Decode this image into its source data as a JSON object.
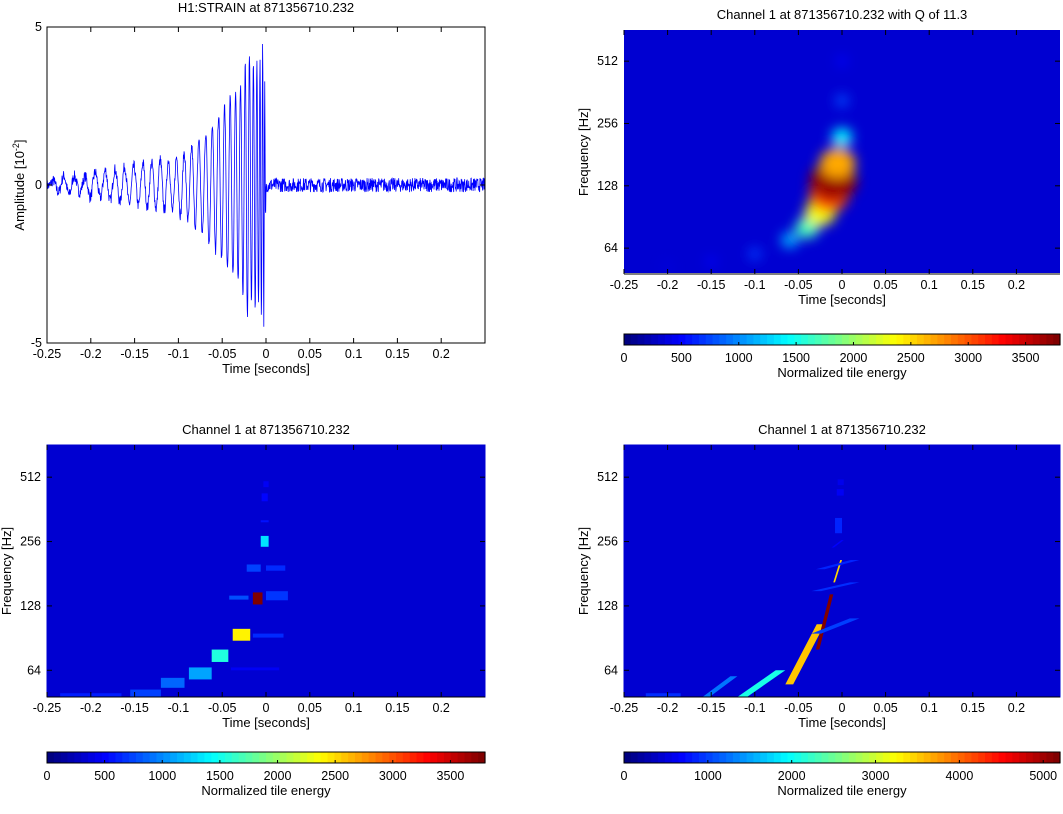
{
  "chart_data": [
    {
      "type": "line",
      "title": "H1:STRAIN at 871356710.232",
      "xlabel": "Time [seconds]",
      "ylabel": "Amplitude [10",
      "ylabel_exponent": "-2",
      "ylabel_close": "]",
      "xlim": [
        -0.25,
        0.25
      ],
      "ylim": [
        -5,
        5
      ],
      "xticks": [
        "-0.25",
        "-0.2",
        "-0.15",
        "-0.1",
        "-0.05",
        "0",
        "0.05",
        "0.1",
        "0.15",
        "0.2"
      ],
      "yticks": [
        "5",
        "0",
        "-5"
      ],
      "series": [
        {
          "color": "#0000ff",
          "x": [
            -0.25,
            -0.24,
            -0.23,
            -0.22,
            -0.21,
            -0.2,
            -0.19,
            -0.18,
            -0.17,
            -0.16,
            -0.15,
            -0.14,
            -0.13,
            -0.12,
            -0.11,
            -0.1,
            -0.095,
            -0.09,
            -0.085,
            -0.08,
            -0.075,
            -0.07,
            -0.065,
            -0.06,
            -0.055,
            -0.05,
            -0.045,
            -0.04,
            -0.035,
            -0.03,
            -0.025,
            -0.02,
            -0.016,
            -0.012,
            -0.008,
            -0.004,
            -0.002,
            0.0,
            0.004,
            0.01,
            0.02,
            0.04,
            0.06,
            0.08,
            0.1,
            0.12,
            0.14,
            0.16,
            0.18,
            0.2,
            0.22,
            0.25
          ],
          "y": [
            0,
            0.2,
            -0.3,
            0.3,
            -0.2,
            0.4,
            -0.4,
            0.5,
            -0.5,
            0.6,
            -0.6,
            0.7,
            -0.7,
            0.8,
            -0.8,
            0.9,
            -1.0,
            1.1,
            -1.2,
            1.3,
            -1.5,
            1.6,
            -1.8,
            2.0,
            -2.2,
            2.4,
            -2.6,
            2.8,
            -3.0,
            3.2,
            -3.5,
            4.5,
            -3.6,
            4.0,
            -3.8,
            4.5,
            -4.3,
            0.3,
            -0.2,
            0.2,
            -0.1,
            0.15,
            -0.15,
            0.1,
            -0.1,
            0.15,
            -0.1,
            0.1,
            -0.15,
            0.1,
            -0.1,
            0
          ]
        }
      ]
    },
    {
      "type": "heatmap",
      "title": "Channel 1 at 871356710.232 with Q of 11.3",
      "xlabel": "Time [seconds]",
      "ylabel": "Frequency [Hz]",
      "xlim": [
        -0.25,
        0.25
      ],
      "xticks": [
        "-0.25",
        "-0.2",
        "-0.15",
        "-0.1",
        "-0.05",
        "0",
        "0.05",
        "0.1",
        "0.15",
        "0.2"
      ],
      "yticks": [
        "512",
        "256",
        "128",
        "64"
      ],
      "ylim_hz": [
        48,
        724
      ],
      "colorbar": {
        "label": "Normalized tile energy",
        "max": 3800,
        "ticks": [
          "0",
          "500",
          "1000",
          "1500",
          "2000",
          "2500",
          "3000",
          "3500"
        ]
      },
      "chirp": {
        "points": [
          {
            "t": -0.2,
            "f": 52,
            "e": 80
          },
          {
            "t": -0.15,
            "f": 55,
            "e": 200
          },
          {
            "t": -0.1,
            "f": 60,
            "e": 450
          },
          {
            "t": -0.06,
            "f": 70,
            "e": 900
          },
          {
            "t": -0.04,
            "f": 80,
            "e": 1500
          },
          {
            "t": -0.025,
            "f": 95,
            "e": 2200
          },
          {
            "t": -0.015,
            "f": 115,
            "e": 3000
          },
          {
            "t": -0.01,
            "f": 135,
            "e": 3700
          },
          {
            "t": -0.005,
            "f": 165,
            "e": 2600
          },
          {
            "t": 0.0,
            "f": 220,
            "e": 1200
          },
          {
            "t": 0.0,
            "f": 330,
            "e": 500
          },
          {
            "t": 0.0,
            "f": 512,
            "e": 250
          }
        ]
      }
    },
    {
      "type": "heatmap",
      "title": "Channel 1 at 871356710.232",
      "xlabel": "Time [seconds]",
      "ylabel": "Frequency [Hz]",
      "xlim": [
        -0.25,
        0.25
      ],
      "xticks": [
        "-0.25",
        "-0.2",
        "-0.15",
        "-0.1",
        "-0.05",
        "0",
        "0.05",
        "0.1",
        "0.15",
        "0.2"
      ],
      "yticks": [
        "512",
        "256",
        "128",
        "64"
      ],
      "ylim_hz": [
        48,
        724
      ],
      "colorbar": {
        "label": "Normalized tile energy",
        "max": 3800,
        "ticks": [
          "0",
          "500",
          "1000",
          "1500",
          "2000",
          "2500",
          "3000",
          "3500"
        ]
      },
      "tiles": [
        {
          "t0": -0.235,
          "t1": -0.165,
          "f0": 48,
          "f1": 50,
          "e": 300
        },
        {
          "t0": -0.155,
          "t1": -0.12,
          "f0": 48,
          "f1": 52,
          "e": 450
        },
        {
          "t0": -0.12,
          "t1": -0.093,
          "f0": 53,
          "f1": 59,
          "e": 600
        },
        {
          "t0": -0.088,
          "t1": -0.062,
          "f0": 58,
          "f1": 66,
          "e": 850
        },
        {
          "t0": -0.062,
          "t1": -0.043,
          "f0": 70,
          "f1": 80,
          "e": 1350
        },
        {
          "t0": -0.038,
          "t1": -0.018,
          "f0": 88,
          "f1": 100,
          "e": 2300
        },
        {
          "t0": -0.015,
          "t1": 0.02,
          "f0": 91,
          "f1": 95,
          "e": 350
        },
        {
          "t0": -0.04,
          "t1": 0.015,
          "f0": 64,
          "f1": 66,
          "e": 150
        },
        {
          "t0": -0.042,
          "t1": -0.02,
          "f0": 137,
          "f1": 143,
          "e": 500
        },
        {
          "t0": -0.015,
          "t1": -0.004,
          "f0": 130,
          "f1": 148,
          "e": 3800
        },
        {
          "t0": 0.0,
          "t1": 0.025,
          "f0": 136,
          "f1": 150,
          "e": 400
        },
        {
          "t0": -0.022,
          "t1": -0.006,
          "f0": 185,
          "f1": 200,
          "e": 450
        },
        {
          "t0": 0.0,
          "t1": 0.022,
          "f0": 187,
          "f1": 198,
          "e": 350
        },
        {
          "t0": -0.006,
          "t1": 0.003,
          "f0": 242,
          "f1": 272,
          "e": 1100
        },
        {
          "t0": -0.006,
          "t1": 0.003,
          "f0": 315,
          "f1": 322,
          "e": 250
        },
        {
          "t0": -0.005,
          "t1": 0.002,
          "f0": 395,
          "f1": 430,
          "e": 200
        },
        {
          "t0": -0.003,
          "t1": 0.003,
          "f0": 460,
          "f1": 490,
          "e": 150
        }
      ]
    },
    {
      "type": "heatmap",
      "title": "Channel 1 at 871356710.232",
      "xlabel": "Time [seconds]",
      "ylabel": "Frequency [Hz]",
      "xlim": [
        -0.25,
        0.25
      ],
      "xticks": [
        "-0.25",
        "-0.2",
        "-0.15",
        "-0.1",
        "-0.05",
        "0",
        "0.05",
        "0.1",
        "0.15",
        "0.2"
      ],
      "yticks": [
        "512",
        "256",
        "128",
        "64"
      ],
      "ylim_hz": [
        48,
        724
      ],
      "colorbar": {
        "label": "Normalized tile energy",
        "max": 5200,
        "ticks": [
          "0",
          "1000",
          "2000",
          "3000",
          "4000",
          "5000"
        ]
      },
      "tiles": [
        {
          "t0": -0.225,
          "t1": -0.185,
          "f0": 48,
          "f1": 50,
          "e": 500
        },
        {
          "t0": -0.16,
          "t1": -0.12,
          "f0": 48,
          "f1": 60,
          "e": 900
        },
        {
          "t0": -0.12,
          "t1": -0.065,
          "f0": 48,
          "f1": 64,
          "e": 1800
        },
        {
          "t0": -0.065,
          "t1": -0.02,
          "f0": 55,
          "f1": 105,
          "e": 3400
        },
        {
          "t0": -0.03,
          "t1": -0.01,
          "f0": 80,
          "f1": 145,
          "e": 5200
        },
        {
          "t0": -0.01,
          "t1": 0.0,
          "f0": 165,
          "f1": 210,
          "e": 3300
        },
        {
          "t0": -0.035,
          "t1": 0.02,
          "f0": 95,
          "f1": 112,
          "e": 600
        },
        {
          "t0": -0.035,
          "t1": 0.02,
          "f0": 150,
          "f1": 165,
          "e": 500
        },
        {
          "t0": -0.03,
          "t1": 0.02,
          "f0": 190,
          "f1": 210,
          "e": 450
        },
        {
          "t0": -0.012,
          "t1": 0.002,
          "f0": 240,
          "f1": 260,
          "e": 250
        },
        {
          "t0": -0.008,
          "t1": 0.0,
          "f0": 280,
          "f1": 330,
          "e": 450
        },
        {
          "t0": -0.006,
          "t1": 0.002,
          "f0": 420,
          "f1": 450,
          "e": 200
        },
        {
          "t0": -0.005,
          "t1": 0.002,
          "f0": 470,
          "f1": 500,
          "e": 150
        }
      ]
    }
  ]
}
